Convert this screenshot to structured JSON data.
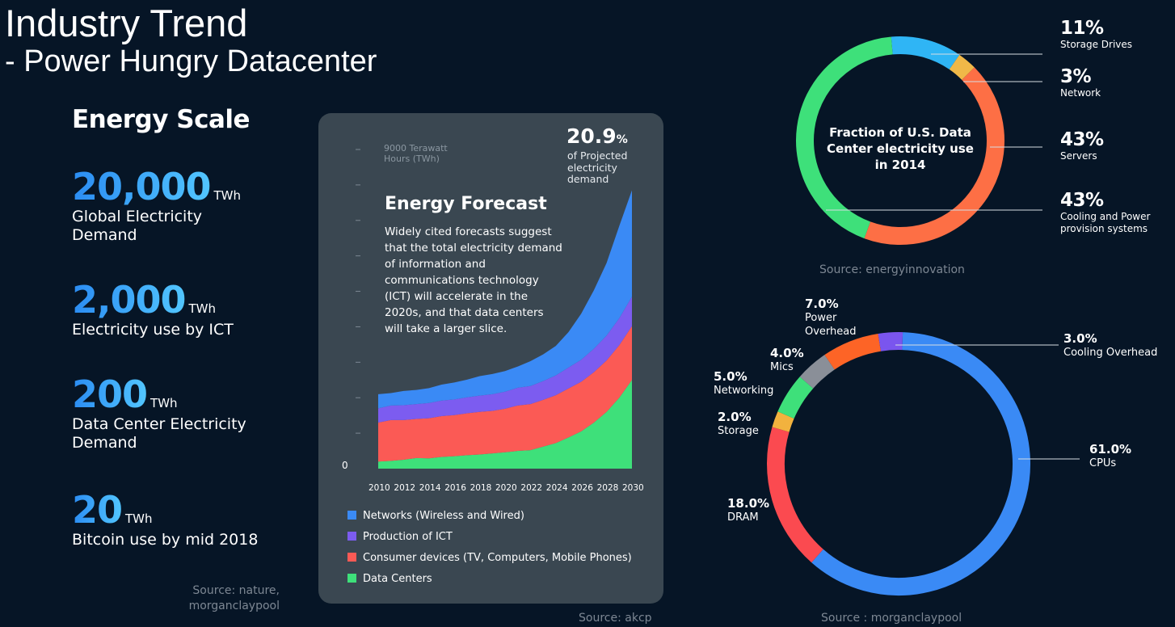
{
  "title": "Industry Trend",
  "subtitle": "- Power Hungry Datacenter",
  "energy_scale": {
    "heading": "Energy Scale",
    "stats": [
      {
        "value": "20,000",
        "unit": "TWh",
        "desc": "Global Electricity Demand"
      },
      {
        "value": "2,000",
        "unit": "TWh",
        "desc": "Electricity use by ICT"
      },
      {
        "value": "200",
        "unit": "TWh",
        "desc": "Data Center Electricity Demand"
      },
      {
        "value": "20",
        "unit": "TWh",
        "desc": "Bitcoin use by mid 2018"
      }
    ],
    "source": "Source: nature, morganclaypool"
  },
  "forecast": {
    "ylabel_top": "9000 Terawatt Hours (TWh)",
    "y_zero": "0",
    "pct_value": "20.9",
    "pct_sign": "%",
    "pct_note": "of Projected electricity demand",
    "title": "Energy Forecast",
    "desc": "Widely cited forecasts suggest that the total electricity demand of information and communications technology (ICT) will accelerate in the 2020s, and that data centers will take a larger slice.",
    "source": "Source: akcp"
  },
  "donut1": {
    "center": "Fraction of U.S. Data Center electricity use in 2014",
    "source": "Source: energyinnovation",
    "labels": [
      {
        "pct": "11%",
        "name": "Storage Drives"
      },
      {
        "pct": "3%",
        "name": "Network"
      },
      {
        "pct": "43%",
        "name": "Servers"
      },
      {
        "pct": "43%",
        "name": "Cooling and Power provision systems"
      }
    ]
  },
  "donut2": {
    "source": "Source : morganclaypool",
    "labels": [
      {
        "pct": "7.0%",
        "name": "Power Overhead"
      },
      {
        "pct": "3.0%",
        "name": "Cooling Overhead"
      },
      {
        "pct": "4.0%",
        "name": "Mics"
      },
      {
        "pct": "5.0%",
        "name": "Networking"
      },
      {
        "pct": "2.0%",
        "name": "Storage"
      },
      {
        "pct": "61.0%",
        "name": "CPUs"
      },
      {
        "pct": "18.0%",
        "name": "DRAM"
      }
    ]
  },
  "chart_data": [
    {
      "type": "area",
      "title": "Energy Forecast",
      "ylabel": "Terawatt Hours (TWh)",
      "ylim": [
        0,
        9000
      ],
      "x": [
        2010,
        2011,
        2012,
        2013,
        2014,
        2015,
        2016,
        2017,
        2018,
        2019,
        2020,
        2021,
        2022,
        2023,
        2024,
        2025,
        2026,
        2027,
        2028,
        2029,
        2030
      ],
      "xticks": [
        "2010",
        "2012",
        "2014",
        "2016",
        "2018",
        "2020",
        "2022",
        "2024",
        "2026",
        "2028",
        "2030"
      ],
      "stacked": true,
      "series": [
        {
          "name": "Data Centers",
          "color": "#3ee07a",
          "values": [
            200,
            220,
            250,
            300,
            290,
            330,
            350,
            380,
            400,
            430,
            460,
            500,
            520,
            620,
            720,
            880,
            1050,
            1300,
            1600,
            2000,
            2500
          ]
        },
        {
          "name": "Consumer devices (TV, Computers, Mobile Phones)",
          "color": "#fb5a55",
          "values": [
            1100,
            1150,
            1120,
            1100,
            1130,
            1150,
            1160,
            1180,
            1200,
            1200,
            1230,
            1280,
            1300,
            1320,
            1350,
            1380,
            1400,
            1420,
            1450,
            1480,
            1520
          ]
        },
        {
          "name": "Production of ICT",
          "color": "#7c5cf0",
          "values": [
            400,
            410,
            420,
            420,
            430,
            440,
            440,
            450,
            460,
            470,
            480,
            500,
            510,
            530,
            560,
            590,
            620,
            660,
            700,
            760,
            830
          ]
        },
        {
          "name": "Networks (Wireless and Wired)",
          "color": "#3a8af5",
          "values": [
            400,
            350,
            400,
            400,
            420,
            450,
            480,
            500,
            550,
            570,
            580,
            600,
            700,
            750,
            830,
            1000,
            1300,
            1650,
            2050,
            2600,
            3000
          ]
        }
      ]
    },
    {
      "type": "pie",
      "title": "Fraction of U.S. Data Center electricity use in 2014",
      "categories": [
        "Storage Drives",
        "Network",
        "Servers",
        "Cooling and Power provision systems"
      ],
      "values": [
        11,
        3,
        43,
        43
      ],
      "colors": [
        "#2fb5f5",
        "#f0b848",
        "#fd6f45",
        "#3ee07a"
      ]
    },
    {
      "type": "pie",
      "categories": [
        "Cooling Overhead",
        "CPUs",
        "DRAM",
        "Storage",
        "Networking",
        "Mics",
        "Power Overhead"
      ],
      "values": [
        3,
        61,
        18,
        2,
        5,
        4,
        7
      ],
      "colors": [
        "#7a55ee",
        "#3a8af5",
        "#fb4a50",
        "#f2b23e",
        "#3ee07a",
        "#8a8f98",
        "#fd6426"
      ]
    }
  ]
}
